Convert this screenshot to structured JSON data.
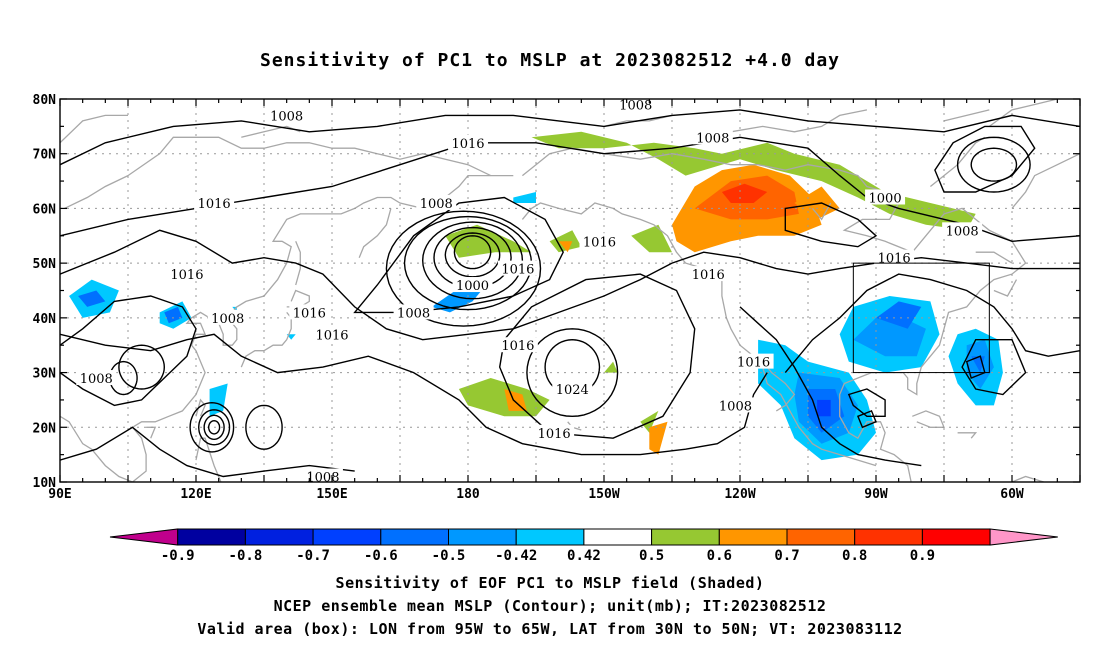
{
  "title": "Sensitivity of PC1 to MSLP at 2023082512 +4.0 day",
  "lat_labels": [
    "80N",
    "70N",
    "60N",
    "50N",
    "40N",
    "30N",
    "20N",
    "10N"
  ],
  "lon_labels": [
    "90E",
    "120E",
    "150E",
    "180",
    "150W",
    "120W",
    "90W",
    "60W"
  ],
  "contour_labels": [
    {
      "text": "1008",
      "lon": 140,
      "lat": 77
    },
    {
      "text": "1008",
      "lon": 217,
      "lat": 79
    },
    {
      "text": "1008",
      "lon": 234,
      "lat": 73
    },
    {
      "text": "1000",
      "lon": 272,
      "lat": 62
    },
    {
      "text": "1008",
      "lon": 289,
      "lat": 56
    },
    {
      "text": "1016",
      "lon": 180,
      "lat": 72
    },
    {
      "text": "1016",
      "lon": 124,
      "lat": 61
    },
    {
      "text": "1008",
      "lon": 173,
      "lat": 61
    },
    {
      "text": "1016",
      "lon": 118,
      "lat": 48
    },
    {
      "text": "1008",
      "lon": 127,
      "lat": 40
    },
    {
      "text": "1016",
      "lon": 145,
      "lat": 41
    },
    {
      "text": "1008",
      "lon": 98,
      "lat": 29
    },
    {
      "text": "1016",
      "lon": 150,
      "lat": 37
    },
    {
      "text": "1008",
      "lon": 168,
      "lat": 41
    },
    {
      "text": "1000",
      "lon": 181,
      "lat": 46
    },
    {
      "text": "1016",
      "lon": 191,
      "lat": 49
    },
    {
      "text": "1016",
      "lon": 209,
      "lat": 54
    },
    {
      "text": "1016",
      "lon": 233,
      "lat": 48
    },
    {
      "text": "1016",
      "lon": 274,
      "lat": 51
    },
    {
      "text": "1016",
      "lon": 191,
      "lat": 35
    },
    {
      "text": "1024",
      "lon": 203,
      "lat": 27
    },
    {
      "text": "1016",
      "lon": 199,
      "lat": 19
    },
    {
      "text": "1016",
      "lon": 243,
      "lat": 32
    },
    {
      "text": "1008",
      "lon": 239,
      "lat": 24
    },
    {
      "text": "1008",
      "lon": 148,
      "lat": 11
    }
  ],
  "colorbar": {
    "labels": [
      "-0.9",
      "-0.8",
      "-0.7",
      "-0.6",
      "-0.5",
      "-0.42",
      "0.42",
      "0.5",
      "0.6",
      "0.7",
      "0.8",
      "0.9"
    ],
    "colors": [
      "#c0008c",
      "#0000a0",
      "#0020e0",
      "#0040ff",
      "#0070ff",
      "#0098ff",
      "#00c8ff",
      "#ffffff",
      "#96c832",
      "#ff9600",
      "#ff6400",
      "#ff3200",
      "#ff0000",
      "#ff96c8"
    ]
  },
  "validity_box": {
    "lon_min": 265,
    "lon_max": 295,
    "lat_min": 30,
    "lat_max": 50
  },
  "captions": {
    "line1": "Sensitivity of EOF PC1 to MSLP field (Shaded)",
    "line2": "NCEP ensemble mean MSLP (Contour); unit(mb); IT:2023082512",
    "line3": "Valid area (box): LON from 95W to 65W, LAT from 30N to 50N; VT: 2023083112"
  }
}
